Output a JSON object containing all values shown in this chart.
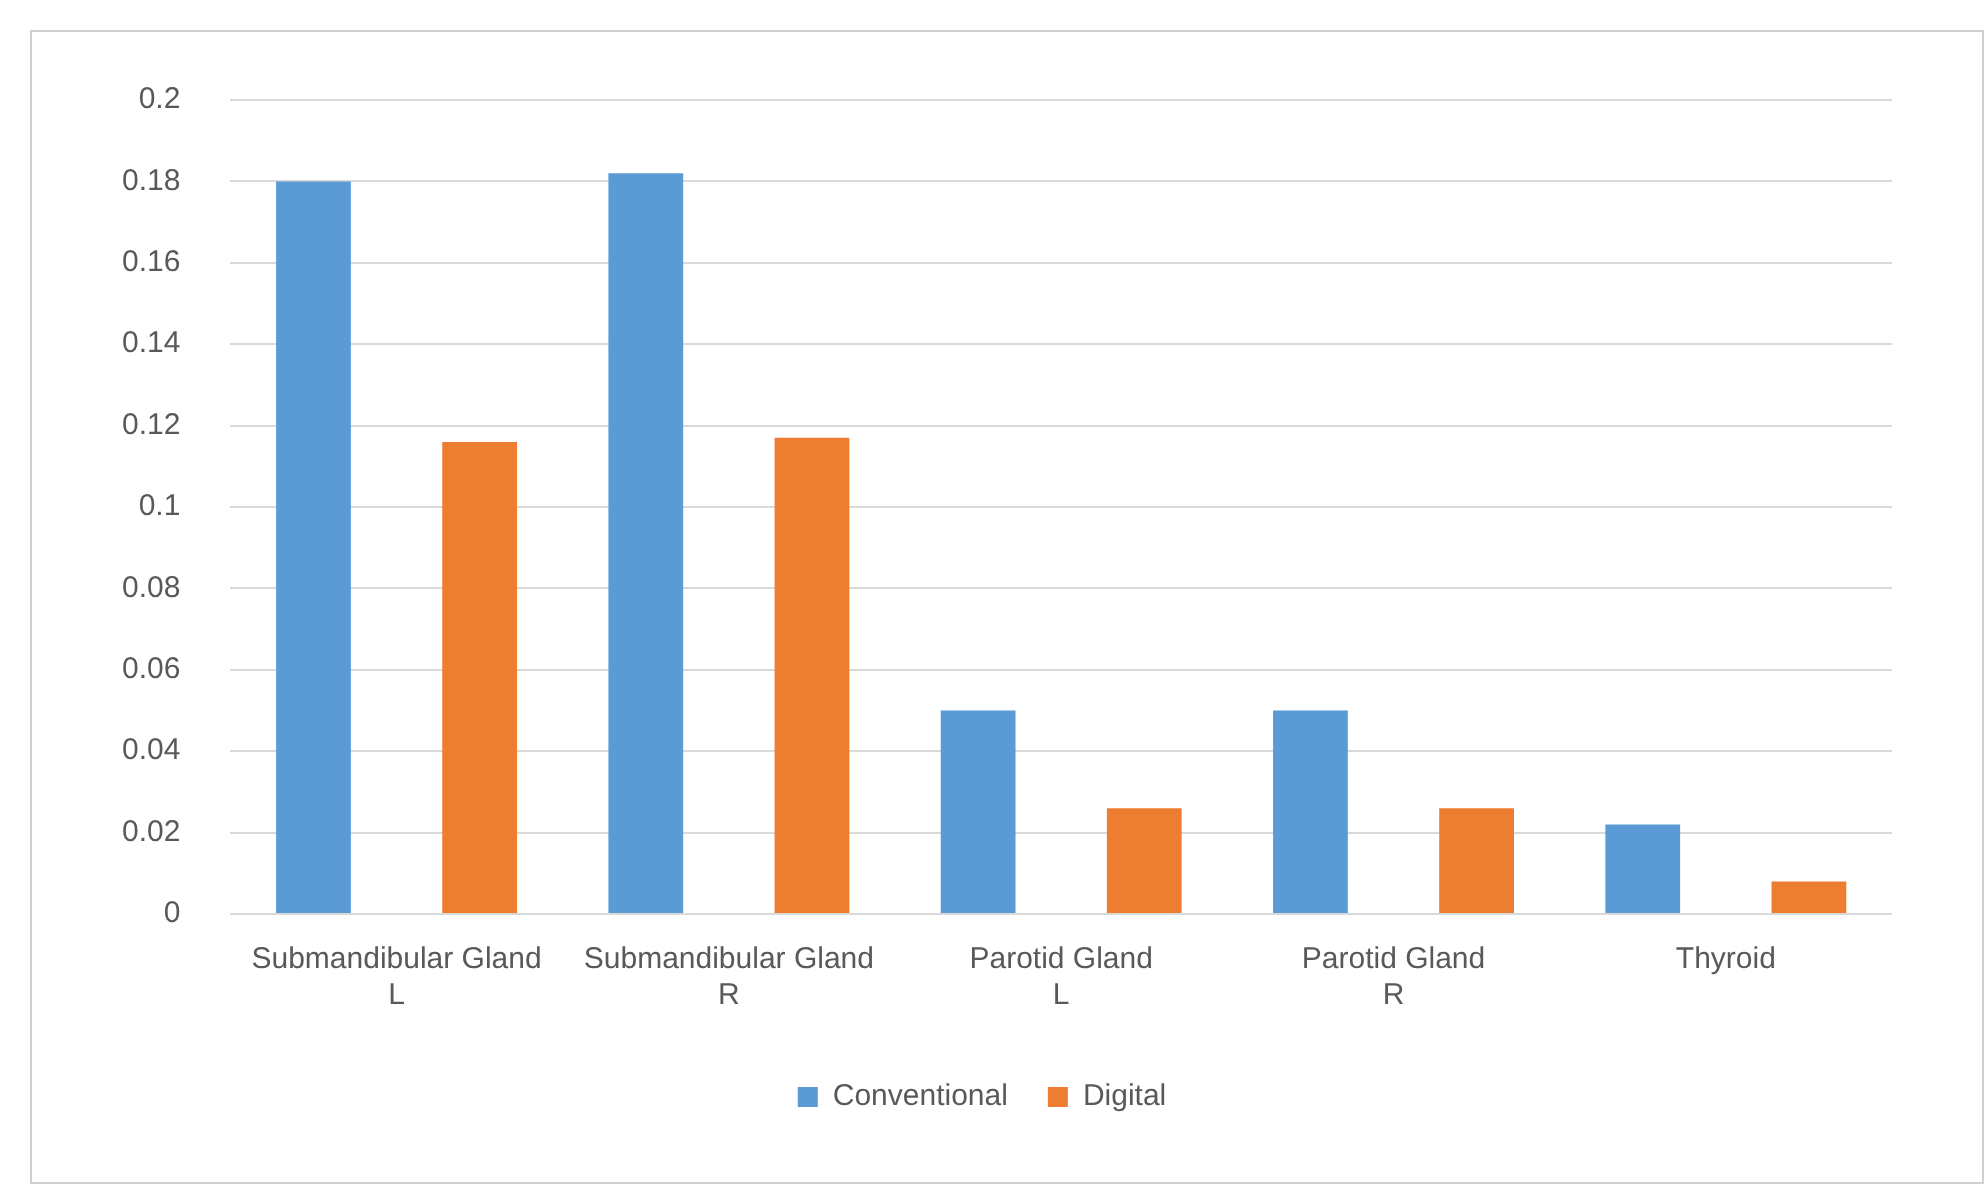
{
  "chart_data": {
    "type": "bar",
    "categories": [
      "Submandibular Gland L",
      "Submandibular Gland R",
      "Parotid Gland L",
      "Parotid Gland R",
      "Thyroid"
    ],
    "series": [
      {
        "name": "Conventional",
        "color": "#5b9bd5",
        "values": [
          0.18,
          0.182,
          0.05,
          0.05,
          0.022
        ]
      },
      {
        "name": "Digital",
        "color": "#ed7d31",
        "values": [
          0.116,
          0.117,
          0.026,
          0.026,
          0.008
        ]
      }
    ],
    "ylim": [
      0,
      0.2
    ],
    "yticks": [
      0,
      0.02,
      0.04,
      0.06,
      0.08,
      0.1,
      0.12,
      0.14,
      0.16,
      0.18,
      0.2
    ],
    "grid": "y",
    "legend": "bottom"
  }
}
